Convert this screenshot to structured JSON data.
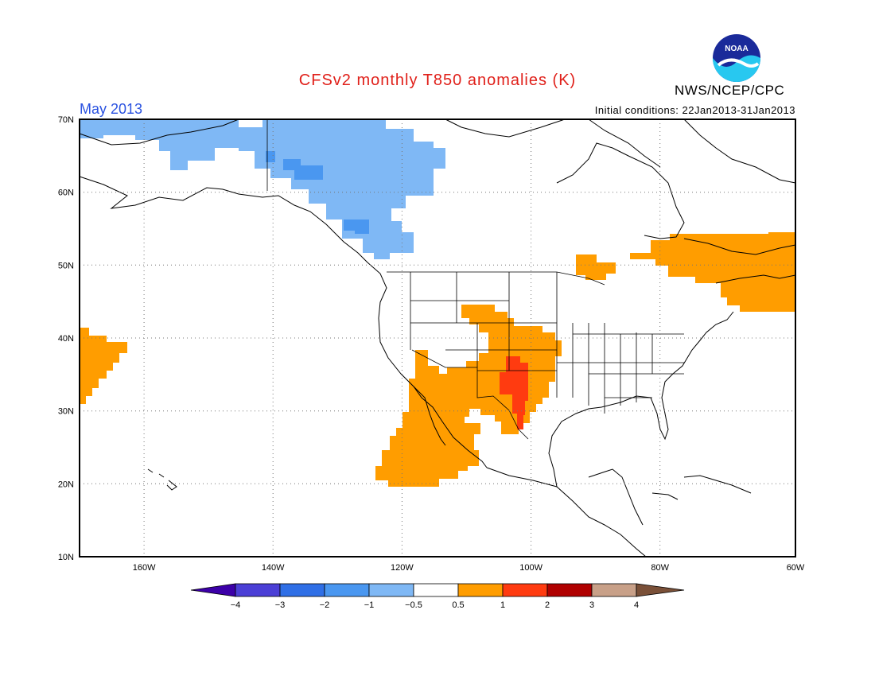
{
  "header": {
    "title": "CFSv2 monthly T850 anomalies (K)",
    "month": "May 2013",
    "initial_conditions": "Initial conditions: 22Jan2013-31Jan2013",
    "agency": "NWS/NCEP/CPC",
    "logo_text": "NOAA"
  },
  "map": {
    "lat_labels": [
      "70N",
      "60N",
      "50N",
      "40N",
      "30N",
      "20N",
      "10N"
    ],
    "lon_labels": [
      "160W",
      "140W",
      "120W",
      "100W",
      "80W",
      "60W"
    ],
    "lat_range": [
      10,
      70
    ],
    "lon_range": [
      -171,
      -60
    ]
  },
  "colorbar": {
    "ticks": [
      "−4",
      "−3",
      "−2",
      "−1",
      "−0.5",
      "0.5",
      "1",
      "2",
      "3",
      "4"
    ],
    "colors": [
      "#3c00a8",
      "#4b3fd6",
      "#2f6fe6",
      "#4a97f0",
      "#7fb8f5",
      "#ffffff",
      "#ff9d00",
      "#ff3b10",
      "#b00000",
      "#c8a088",
      "#7a5038"
    ]
  },
  "colors": {
    "anom_neg_0_5_1": "#7fb8f5",
    "anom_neg_1_2": "#4a97f0",
    "anom_pos_0_5_1": "#ff9d00",
    "anom_pos_1_2": "#ff3b10"
  }
}
